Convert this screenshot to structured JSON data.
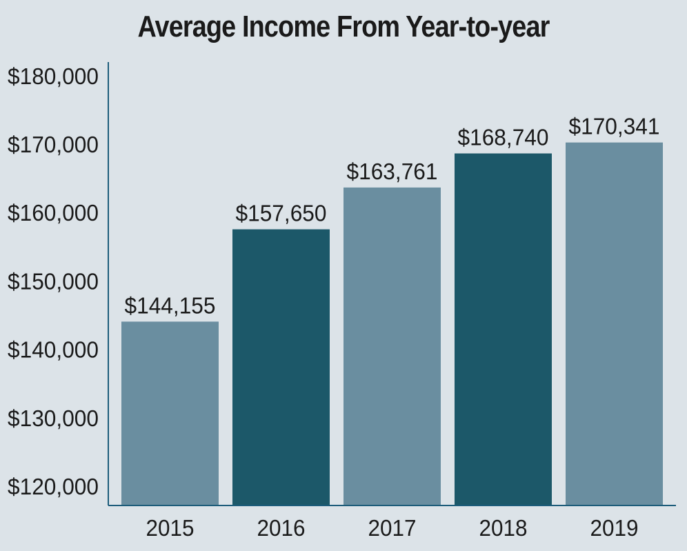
{
  "chart_data": {
    "type": "bar",
    "title": "Average Income From Year-to-year",
    "categories": [
      "2015",
      "2016",
      "2017",
      "2018",
      "2019"
    ],
    "values": [
      144155,
      157650,
      163761,
      168740,
      170341
    ],
    "value_labels": [
      "$144,155",
      "$157,650",
      "$163,761",
      "$168,740",
      "$170,341"
    ],
    "ylim": [
      118000,
      182000
    ],
    "yticks": [
      120000,
      130000,
      140000,
      150000,
      160000,
      170000,
      180000
    ],
    "ytick_labels": [
      "$120,000",
      "$130,000",
      "$140,000",
      "$150,000",
      "$160,000",
      "$170,000",
      "$180,000"
    ],
    "xlabel": "",
    "ylabel": "",
    "grid": false,
    "legend": "none",
    "colors": {
      "bar_light": "#6a8ea0",
      "bar_dark": "#1c5869",
      "axis": "#1c5c7a",
      "background": "#dce3e8"
    },
    "bar_color_pattern": [
      "light",
      "dark",
      "light",
      "dark",
      "light"
    ]
  }
}
